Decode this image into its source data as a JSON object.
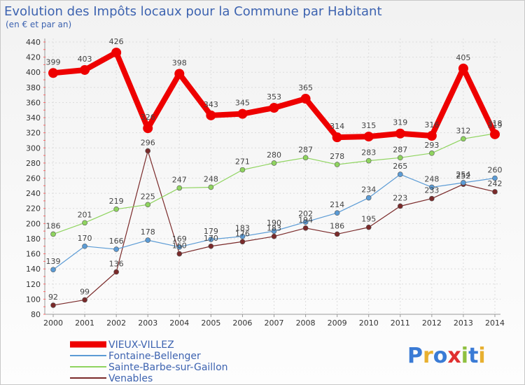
{
  "chart_data": {
    "type": "line",
    "title": "Evolution des Impôts locaux pour la Commune par Habitant",
    "subtitle": "(en € et par an)",
    "x": [
      "2000",
      "2001",
      "2002",
      "2003",
      "2004",
      "2005",
      "2006",
      "2007",
      "2008",
      "2009",
      "2010",
      "2011",
      "2012",
      "2013",
      "2014"
    ],
    "ylim": [
      80,
      440
    ],
    "yticks": [
      80,
      100,
      120,
      140,
      160,
      180,
      200,
      220,
      240,
      260,
      280,
      300,
      320,
      340,
      360,
      380,
      400,
      420,
      440
    ],
    "grid": true,
    "legend_position": "bottom-left",
    "series": [
      {
        "name": "VIEUX-VILLEZ",
        "color": "#ee0000",
        "values": [
          399,
          403,
          426,
          326,
          398,
          343,
          345,
          353,
          365,
          314,
          315,
          319,
          316,
          405,
          318
        ]
      },
      {
        "name": "Fontaine-Bellenger",
        "color": "#5b9bd5",
        "values": [
          139,
          170,
          166,
          178,
          169,
          179,
          183,
          190,
          202,
          214,
          234,
          265,
          248,
          254,
          260
        ]
      },
      {
        "name": "Sainte-Barbe-sur-Gaillon",
        "color": "#8fd45f",
        "values": [
          186,
          201,
          219,
          225,
          247,
          248,
          271,
          280,
          287,
          278,
          283,
          287,
          293,
          312,
          319
        ]
      },
      {
        "name": "Venables",
        "color": "#7a2a2a",
        "values": [
          92,
          99,
          136,
          296,
          160,
          170,
          176,
          183,
          194,
          186,
          195,
          223,
          233,
          252,
          242
        ]
      }
    ]
  },
  "logo": {
    "text": "Proxiti"
  }
}
